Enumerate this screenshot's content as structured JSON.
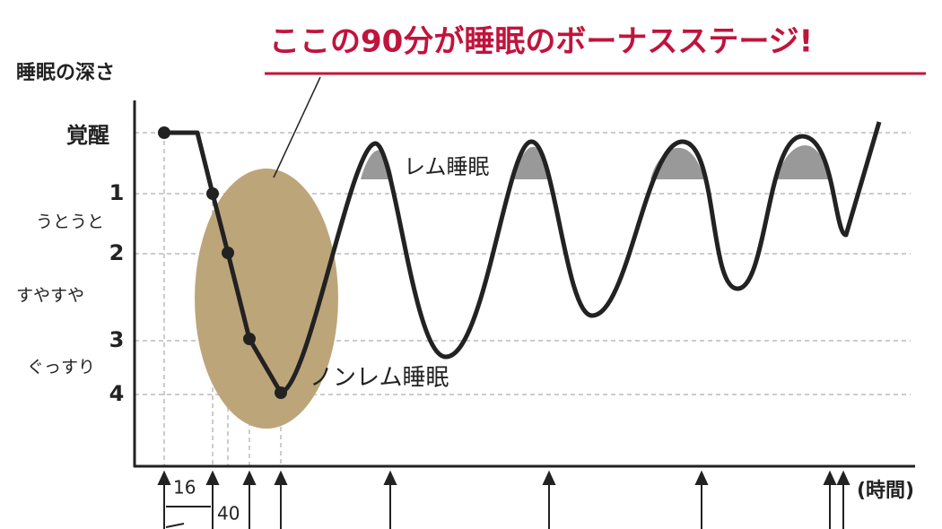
{
  "title": "ここの90分が睡眠のボーナスステージ!",
  "y_axis_label": "睡眠の深さ",
  "levels": [
    "覚醒",
    "1",
    "2",
    "3",
    "4"
  ],
  "descriptions": [
    "うとうと",
    "すやすや",
    "ぐっすり"
  ],
  "rem_label": "レム睡眠",
  "nonrem_label": "ノンレム睡眠",
  "intervals": [
    "16",
    "40"
  ],
  "x_axis_label": "(時間)"
}
